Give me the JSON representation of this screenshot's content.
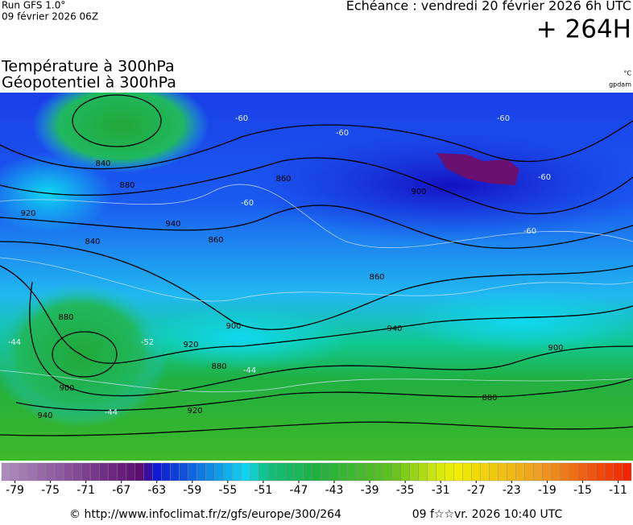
{
  "header": {
    "run": "Run GFS 1.0°",
    "run_date": "09 février 2026 06Z",
    "valid": "Echéance : vendredi 20 février 2026 6h UTC",
    "lead": "+ 264H"
  },
  "title": {
    "line1": "Température à 300hPa",
    "line2": "Géopotentiel à 300hPa",
    "unit_temp": "°C",
    "unit_geo": "gpdam"
  },
  "map": {
    "geopotential_labels": [
      840,
      860,
      880,
      900,
      920,
      940,
      840,
      860,
      880,
      900,
      920,
      940,
      860,
      880,
      900,
      920,
      940,
      880,
      900
    ],
    "temperature_labels": [
      -60,
      -60,
      -60,
      -60,
      -60,
      -60,
      -52,
      -44,
      -44,
      -44
    ]
  },
  "scale": {
    "min": -80,
    "max": -9,
    "ticks": [
      -79,
      -75,
      -71,
      -67,
      -63,
      -59,
      -55,
      -51,
      -47,
      -43,
      -39,
      -35,
      -31,
      -27,
      -23,
      -19,
      -15,
      -11
    ]
  },
  "footer": {
    "url": "© http://www.infoclimat.fr/z/gfs/europe/300/264",
    "date": "09 f☆☆vr. 2026 10:40 UTC"
  }
}
